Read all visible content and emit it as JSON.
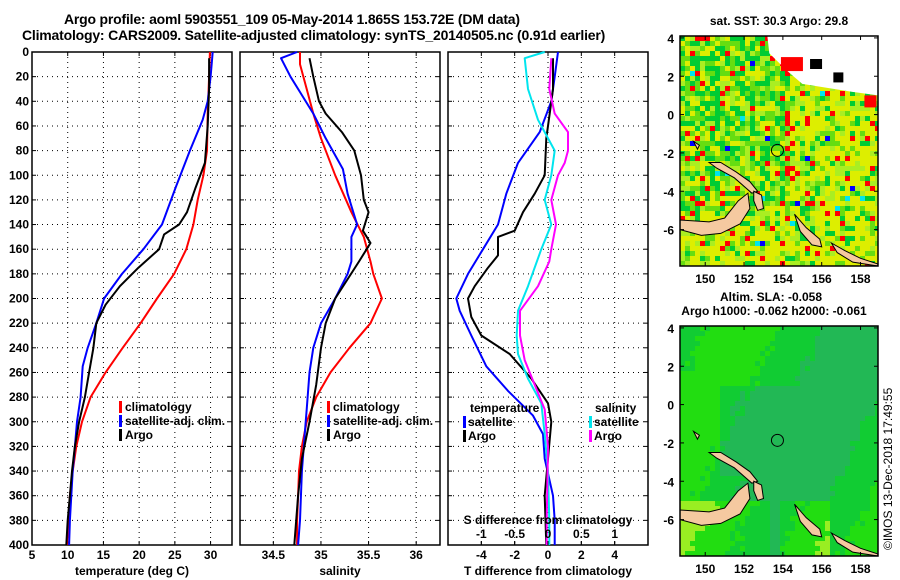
{
  "header": {
    "title_line1": "Argo profile: aoml 5903551_109 05-May-2014 1.865S 153.72E (DM data)",
    "title_line2": "Climatology: CARS2009. Satellite-adjusted climatology: synTS_20140505.nc (0.91d earlier)"
  },
  "colors": {
    "climatology": "#ff0000",
    "satellite": "#0000ff",
    "argo": "#000000",
    "sal_satellite": "#00e5ee",
    "sal_argo": "#ff00ff"
  },
  "chart_data": [
    {
      "type": "line",
      "id": "temperature",
      "xlabel": "temperature (deg C)",
      "ylabel": "",
      "xlim": [
        5,
        33
      ],
      "ylim": [
        400,
        0
      ],
      "xticks": [
        5,
        10,
        15,
        20,
        25,
        30
      ],
      "yticks": [
        0,
        20,
        40,
        60,
        80,
        100,
        120,
        140,
        160,
        180,
        200,
        220,
        240,
        260,
        280,
        300,
        320,
        340,
        360,
        380,
        400
      ],
      "grid": true,
      "legend": {
        "position": "lower-right",
        "entries": [
          "climatology",
          "satellite-adj. clim.",
          "Argo"
        ]
      },
      "series": [
        {
          "name": "climatology",
          "color_key": "climatology",
          "points": [
            [
              29.9,
              0
            ],
            [
              29.8,
              20
            ],
            [
              29.6,
              50
            ],
            [
              29.5,
              80
            ],
            [
              29.0,
              100
            ],
            [
              28.2,
              120
            ],
            [
              27.6,
              140
            ],
            [
              26.6,
              160
            ],
            [
              24.9,
              180
            ],
            [
              22.5,
              200
            ],
            [
              20.2,
              220
            ],
            [
              17.7,
              240
            ],
            [
              15.3,
              260
            ],
            [
              13.2,
              280
            ],
            [
              12.0,
              300
            ],
            [
              11.2,
              320
            ],
            [
              10.7,
              340
            ],
            [
              10.3,
              360
            ],
            [
              10.1,
              380
            ],
            [
              9.9,
              400
            ]
          ]
        },
        {
          "name": "satellite-adj. clim.",
          "color_key": "satellite",
          "points": [
            [
              30.3,
              0
            ],
            [
              30.0,
              20
            ],
            [
              29.6,
              40
            ],
            [
              28.9,
              55
            ],
            [
              27.1,
              80
            ],
            [
              25.1,
              110
            ],
            [
              23.2,
              140
            ],
            [
              20.6,
              160
            ],
            [
              17.6,
              180
            ],
            [
              15.1,
              200
            ],
            [
              14.0,
              220
            ],
            [
              12.8,
              240
            ],
            [
              12.1,
              255
            ],
            [
              11.8,
              280
            ],
            [
              11.3,
              300
            ],
            [
              11.0,
              320
            ],
            [
              10.7,
              340
            ],
            [
              10.5,
              360
            ],
            [
              10.3,
              380
            ],
            [
              10.2,
              400
            ]
          ]
        },
        {
          "name": "Argo",
          "color_key": "argo",
          "points": [
            [
              29.8,
              5
            ],
            [
              29.8,
              30
            ],
            [
              29.6,
              60
            ],
            [
              29.2,
              90
            ],
            [
              27.9,
              110
            ],
            [
              26.7,
              130
            ],
            [
              25.6,
              140
            ],
            [
              23.5,
              148
            ],
            [
              22.8,
              160
            ],
            [
              19.9,
              175
            ],
            [
              17.3,
              190
            ],
            [
              15.3,
              205
            ],
            [
              14.0,
              220
            ],
            [
              13.6,
              240
            ],
            [
              13.0,
              260
            ],
            [
              12.4,
              280
            ],
            [
              11.6,
              300
            ],
            [
              11.0,
              320
            ],
            [
              10.6,
              340
            ],
            [
              10.3,
              360
            ],
            [
              10.0,
              380
            ],
            [
              9.8,
              400
            ]
          ]
        }
      ]
    },
    {
      "type": "line",
      "id": "salinity",
      "xlabel": "salinity",
      "xlim": [
        34.15,
        36.25
      ],
      "ylim": [
        400,
        0
      ],
      "xticks": [
        34.5,
        35,
        35.5,
        36
      ],
      "grid": true,
      "legend": {
        "position": "lower-right",
        "entries": [
          "climatology",
          "satellite-adj. clim.",
          "Argo"
        ]
      },
      "series": [
        {
          "name": "climatology",
          "color_key": "climatology",
          "points": [
            [
              34.78,
              0
            ],
            [
              34.78,
              10
            ],
            [
              34.85,
              30
            ],
            [
              34.92,
              50
            ],
            [
              35.0,
              70
            ],
            [
              35.15,
              100
            ],
            [
              35.32,
              130
            ],
            [
              35.45,
              150
            ],
            [
              35.52,
              170
            ],
            [
              35.55,
              180
            ],
            [
              35.64,
              200
            ],
            [
              35.52,
              220
            ],
            [
              35.3,
              240
            ],
            [
              35.1,
              260
            ],
            [
              34.95,
              280
            ],
            [
              34.85,
              300
            ],
            [
              34.8,
              320
            ],
            [
              34.77,
              340
            ],
            [
              34.76,
              360
            ],
            [
              34.75,
              380
            ],
            [
              34.75,
              400
            ]
          ]
        },
        {
          "name": "satellite-adj. clim.",
          "color_key": "satellite",
          "points": [
            [
              34.75,
              0
            ],
            [
              34.58,
              5
            ],
            [
              34.68,
              20
            ],
            [
              34.8,
              35
            ],
            [
              34.92,
              50
            ],
            [
              35.05,
              70
            ],
            [
              35.23,
              95
            ],
            [
              35.28,
              115
            ],
            [
              35.38,
              140
            ],
            [
              35.32,
              150
            ],
            [
              35.32,
              170
            ],
            [
              35.28,
              180
            ],
            [
              35.15,
              200
            ],
            [
              35.0,
              220
            ],
            [
              34.92,
              240
            ],
            [
              34.88,
              260
            ],
            [
              34.85,
              290
            ],
            [
              34.84,
              300
            ],
            [
              34.8,
              340
            ],
            [
              34.78,
              380
            ],
            [
              34.76,
              400
            ]
          ]
        },
        {
          "name": "Argo",
          "color_key": "argo",
          "points": [
            [
              34.88,
              5
            ],
            [
              34.92,
              20
            ],
            [
              34.98,
              40
            ],
            [
              35.05,
              50
            ],
            [
              35.22,
              65
            ],
            [
              35.35,
              80
            ],
            [
              35.42,
              100
            ],
            [
              35.45,
              120
            ],
            [
              35.5,
              130
            ],
            [
              35.44,
              145
            ],
            [
              35.52,
              155
            ],
            [
              35.4,
              170
            ],
            [
              35.15,
              200
            ],
            [
              35.05,
              220
            ],
            [
              35.0,
              240
            ],
            [
              34.95,
              270
            ],
            [
              34.88,
              300
            ],
            [
              34.8,
              330
            ],
            [
              34.76,
              360
            ],
            [
              34.72,
              400
            ]
          ]
        }
      ]
    },
    {
      "type": "line",
      "id": "difference",
      "xlabel": "T difference from climatology",
      "x2label": "S difference from climatology",
      "xlim": [
        -6,
        6
      ],
      "x2lim": [
        -1.5,
        1.5
      ],
      "ylim": [
        400,
        0
      ],
      "xticks": [
        -4,
        -2,
        0,
        2,
        4
      ],
      "x2ticks": [
        -1,
        -0.5,
        0,
        0.5,
        1
      ],
      "grid": true,
      "legend": {
        "position": "lower-center",
        "temperature_title": "temperature",
        "salinity_title": "salinity",
        "entries": [
          "satellite",
          "Argo"
        ]
      },
      "series": [
        {
          "name": "temperature satellite",
          "color_key": "satellite",
          "axis": "T",
          "points": [
            [
              0.6,
              0
            ],
            [
              0.4,
              20
            ],
            [
              0.2,
              40
            ],
            [
              -0.5,
              65
            ],
            [
              -1.8,
              90
            ],
            [
              -2.5,
              115
            ],
            [
              -3.0,
              140
            ],
            [
              -3.9,
              160
            ],
            [
              -4.8,
              180
            ],
            [
              -5.5,
              200
            ],
            [
              -5.3,
              210
            ],
            [
              -4.6,
              230
            ],
            [
              -3.7,
              255
            ],
            [
              -2.4,
              275
            ],
            [
              -0.9,
              295
            ],
            [
              -0.3,
              310
            ],
            [
              -0.2,
              330
            ],
            [
              0.3,
              360
            ],
            [
              0.4,
              380
            ],
            [
              0.4,
              400
            ]
          ]
        },
        {
          "name": "temperature Argo",
          "color_key": "argo",
          "axis": "T",
          "points": [
            [
              0.3,
              5
            ],
            [
              0.3,
              30
            ],
            [
              0.1,
              50
            ],
            [
              -0.1,
              70
            ],
            [
              -0.2,
              100
            ],
            [
              -0.8,
              115
            ],
            [
              -1.5,
              130
            ],
            [
              -2.0,
              145
            ],
            [
              -3.0,
              150
            ],
            [
              -3.0,
              165
            ],
            [
              -3.6,
              175
            ],
            [
              -4.4,
              190
            ],
            [
              -4.8,
              200
            ],
            [
              -4.6,
              215
            ],
            [
              -4.0,
              230
            ],
            [
              -2.3,
              245
            ],
            [
              -1.0,
              265
            ],
            [
              0.0,
              285
            ],
            [
              0.2,
              300
            ],
            [
              0.0,
              330
            ],
            [
              -0.2,
              360
            ],
            [
              -0.1,
              400
            ]
          ]
        },
        {
          "name": "salinity satellite",
          "color_key": "sal_satellite",
          "axis": "S",
          "points": [
            [
              -0.05,
              0
            ],
            [
              -0.35,
              5
            ],
            [
              -0.3,
              30
            ],
            [
              -0.15,
              55
            ],
            [
              0.1,
              80
            ],
            [
              0.05,
              100
            ],
            [
              -0.05,
              120
            ],
            [
              0.05,
              140
            ],
            [
              -0.1,
              160
            ],
            [
              -0.3,
              190
            ],
            [
              -0.45,
              210
            ],
            [
              -0.47,
              230
            ],
            [
              -0.45,
              245
            ],
            [
              -0.3,
              265
            ],
            [
              -0.1,
              285
            ],
            [
              -0.05,
              310
            ],
            [
              0.0,
              340
            ],
            [
              0.02,
              380
            ],
            [
              0.02,
              400
            ]
          ]
        },
        {
          "name": "salinity Argo",
          "color_key": "sal_argo",
          "axis": "S",
          "points": [
            [
              0.05,
              5
            ],
            [
              0.02,
              30
            ],
            [
              0.1,
              50
            ],
            [
              0.3,
              65
            ],
            [
              0.3,
              80
            ],
            [
              0.25,
              90
            ],
            [
              0.15,
              100
            ],
            [
              0.05,
              120
            ],
            [
              0.12,
              140
            ],
            [
              0.05,
              160
            ],
            [
              0.02,
              170
            ],
            [
              -0.15,
              190
            ],
            [
              -0.42,
              210
            ],
            [
              -0.42,
              230
            ],
            [
              -0.35,
              250
            ],
            [
              -0.2,
              270
            ],
            [
              -0.05,
              290
            ],
            [
              0.0,
              320
            ],
            [
              -0.02,
              380
            ],
            [
              -0.02,
              400
            ]
          ]
        }
      ]
    },
    {
      "type": "heatmap",
      "id": "sst-map",
      "title": "sat. SST: 30.3 Argo: 29.8",
      "xlim": [
        148.7,
        158.9
      ],
      "ylim": [
        -7.9,
        4.1
      ],
      "xticks": [
        150,
        152,
        154,
        156,
        158
      ],
      "yticks": [
        4,
        2,
        0,
        -2,
        -4,
        -6
      ],
      "marker": {
        "lon": 153.72,
        "lat": -1.865
      }
    },
    {
      "type": "heatmap",
      "id": "sla-map",
      "title_line1": "Altim. SLA: -0.058",
      "title_line2": "Argo h1000: -0.062 h2000: -0.061",
      "xlim": [
        148.7,
        158.9
      ],
      "ylim": [
        -7.9,
        4.1
      ],
      "xticks": [
        150,
        152,
        154,
        156,
        158
      ],
      "yticks": [
        4,
        2,
        0,
        -2,
        -4,
        -6
      ],
      "marker": {
        "lon": 153.72,
        "lat": -1.865
      }
    }
  ],
  "footer": {
    "stamp": "©IMOS 13-Dec-2018 17:49:55"
  }
}
